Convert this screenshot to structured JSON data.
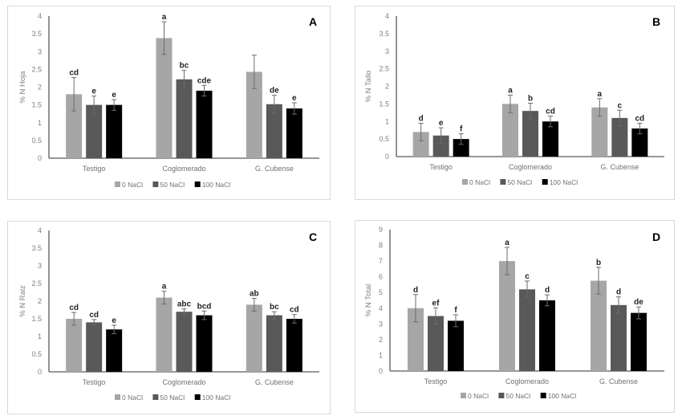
{
  "chart_data": [
    {
      "type": "bar",
      "panel": "A",
      "ylabel": "% N Hoja",
      "xlabel": "",
      "ylim": [
        0,
        4
      ],
      "yticks": [
        "0",
        "0.5",
        "1",
        "1.5",
        "2",
        "2.5",
        "3",
        "3.5",
        "4"
      ],
      "ytick_values": [
        0,
        0.5,
        1,
        1.5,
        2,
        2.5,
        3,
        3.5,
        4
      ],
      "grid": false,
      "legend": "bottom",
      "categories": [
        "Testigo",
        "Coglomerado",
        "G. Cubense"
      ],
      "series": [
        {
          "name": "0 NaCl",
          "color": "#a6a6a6",
          "values": [
            1.8,
            3.38,
            2.43
          ],
          "errors": [
            0.47,
            0.46,
            0.47
          ],
          "letters": [
            "cd",
            "a",
            ""
          ]
        },
        {
          "name": "50 NaCl",
          "color": "#595959",
          "values": [
            1.5,
            2.22,
            1.52
          ],
          "errors": [
            0.25,
            0.25,
            0.25
          ],
          "letters": [
            "e",
            "bc",
            "de"
          ]
        },
        {
          "name": "100 NaCl",
          "color": "#000000",
          "values": [
            1.5,
            1.9,
            1.4
          ],
          "errors": [
            0.15,
            0.15,
            0.16
          ],
          "letters": [
            "e",
            "cde",
            "e"
          ]
        }
      ]
    },
    {
      "type": "bar",
      "panel": "B",
      "ylabel": "% N Tallo",
      "xlabel": "",
      "ylim": [
        0,
        4
      ],
      "yticks": [
        "0",
        "0.5",
        "1",
        "1.5",
        "2",
        "2.5",
        "3",
        "3.5",
        "4"
      ],
      "ytick_values": [
        0,
        0.5,
        1,
        1.5,
        2,
        2.5,
        3,
        3.5,
        4
      ],
      "grid": false,
      "legend": "bottom",
      "categories": [
        "Testigo",
        "Coglomerado",
        "G. Cubense"
      ],
      "series": [
        {
          "name": "0 NaCl",
          "color": "#a6a6a6",
          "values": [
            0.7,
            1.5,
            1.4
          ],
          "errors": [
            0.25,
            0.25,
            0.25
          ],
          "letters": [
            "d",
            "a",
            "a"
          ]
        },
        {
          "name": "50 NaCl",
          "color": "#595959",
          "values": [
            0.6,
            1.3,
            1.1
          ],
          "errors": [
            0.22,
            0.22,
            0.22
          ],
          "letters": [
            "e",
            "b",
            "c"
          ]
        },
        {
          "name": "100 NaCl",
          "color": "#000000",
          "values": [
            0.5,
            1.0,
            0.8
          ],
          "errors": [
            0.15,
            0.15,
            0.15
          ],
          "letters": [
            "f",
            "cd",
            "cd"
          ]
        }
      ]
    },
    {
      "type": "bar",
      "panel": "C",
      "ylabel": "% N Raiz",
      "xlabel": "",
      "ylim": [
        0,
        4
      ],
      "yticks": [
        "0",
        "0.5",
        "1",
        "1.5",
        "2",
        "2.5",
        "3",
        "3.5",
        "4"
      ],
      "ytick_values": [
        0,
        0.5,
        1,
        1.5,
        2,
        2.5,
        3,
        3.5,
        4
      ],
      "grid": false,
      "legend": "bottom",
      "categories": [
        "Testigo",
        "Coglomerado",
        "G. Cubense"
      ],
      "series": [
        {
          "name": "0 NaCl",
          "color": "#a6a6a6",
          "values": [
            1.5,
            2.1,
            1.9
          ],
          "errors": [
            0.18,
            0.18,
            0.18
          ],
          "letters": [
            "cd",
            "a",
            "ab"
          ]
        },
        {
          "name": "50 NaCl",
          "color": "#595959",
          "values": [
            1.4,
            1.7,
            1.6
          ],
          "errors": [
            0.08,
            0.08,
            0.1
          ],
          "letters": [
            "cd",
            "abc",
            "bc"
          ]
        },
        {
          "name": "100 NaCl",
          "color": "#000000",
          "values": [
            1.2,
            1.6,
            1.5
          ],
          "errors": [
            0.12,
            0.12,
            0.12
          ],
          "letters": [
            "e",
            "bcd",
            "cd"
          ]
        }
      ]
    },
    {
      "type": "bar",
      "panel": "D",
      "ylabel": "% N Total",
      "xlabel": "",
      "ylim": [
        0,
        9
      ],
      "yticks": [
        "0",
        "1",
        "2",
        "3",
        "4",
        "5",
        "6",
        "7",
        "8",
        "9"
      ],
      "ytick_values": [
        0,
        1,
        2,
        3,
        4,
        5,
        6,
        7,
        8,
        9
      ],
      "grid": false,
      "legend": "bottom",
      "categories": [
        "Testigo",
        "Coglomerado",
        "G. Cubense"
      ],
      "series": [
        {
          "name": "0 NaCl",
          "color": "#a6a6a6",
          "values": [
            4.0,
            7.0,
            5.75
          ],
          "errors": [
            0.87,
            0.87,
            0.85
          ],
          "letters": [
            "d",
            "a",
            "b"
          ]
        },
        {
          "name": "50 NaCl",
          "color": "#595959",
          "values": [
            3.5,
            5.2,
            4.2
          ],
          "errors": [
            0.52,
            0.53,
            0.52
          ],
          "letters": [
            "ef",
            "c",
            "d"
          ]
        },
        {
          "name": "100 NaCl",
          "color": "#000000",
          "values": [
            3.2,
            4.5,
            3.7
          ],
          "errors": [
            0.38,
            0.35,
            0.38
          ],
          "letters": [
            "f",
            "d",
            "de"
          ]
        }
      ]
    }
  ]
}
